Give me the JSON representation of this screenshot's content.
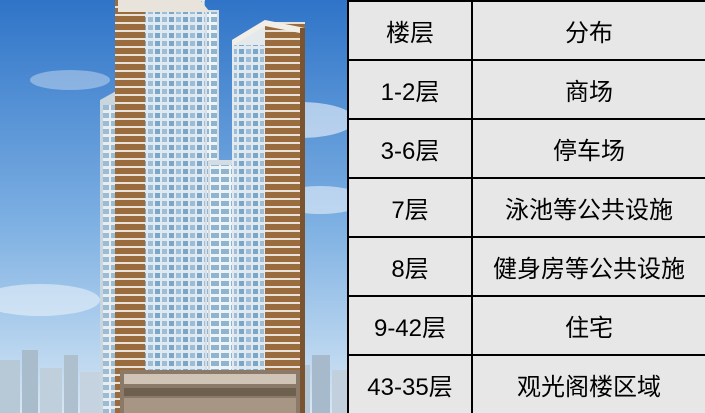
{
  "table": {
    "headers": [
      "楼层",
      "分布"
    ],
    "rows": [
      {
        "floor": "1-2层",
        "use": "商场"
      },
      {
        "floor": "3-6层",
        "use": "停车场"
      },
      {
        "floor": "7层",
        "use": "泳池等公共设施"
      },
      {
        "floor": "8层",
        "use": "健身房等公共设施"
      },
      {
        "floor": "9-42层",
        "use": "住宅"
      },
      {
        "floor": "43-35层",
        "use": "观光阁楼区域"
      }
    ]
  },
  "colors": {
    "cell_background": "#e7e7e7",
    "border": "#000000",
    "sky_top": "#2f74c8",
    "sky_bottom": "#cfe3f4",
    "tower_accent": "#9a6b3c"
  }
}
